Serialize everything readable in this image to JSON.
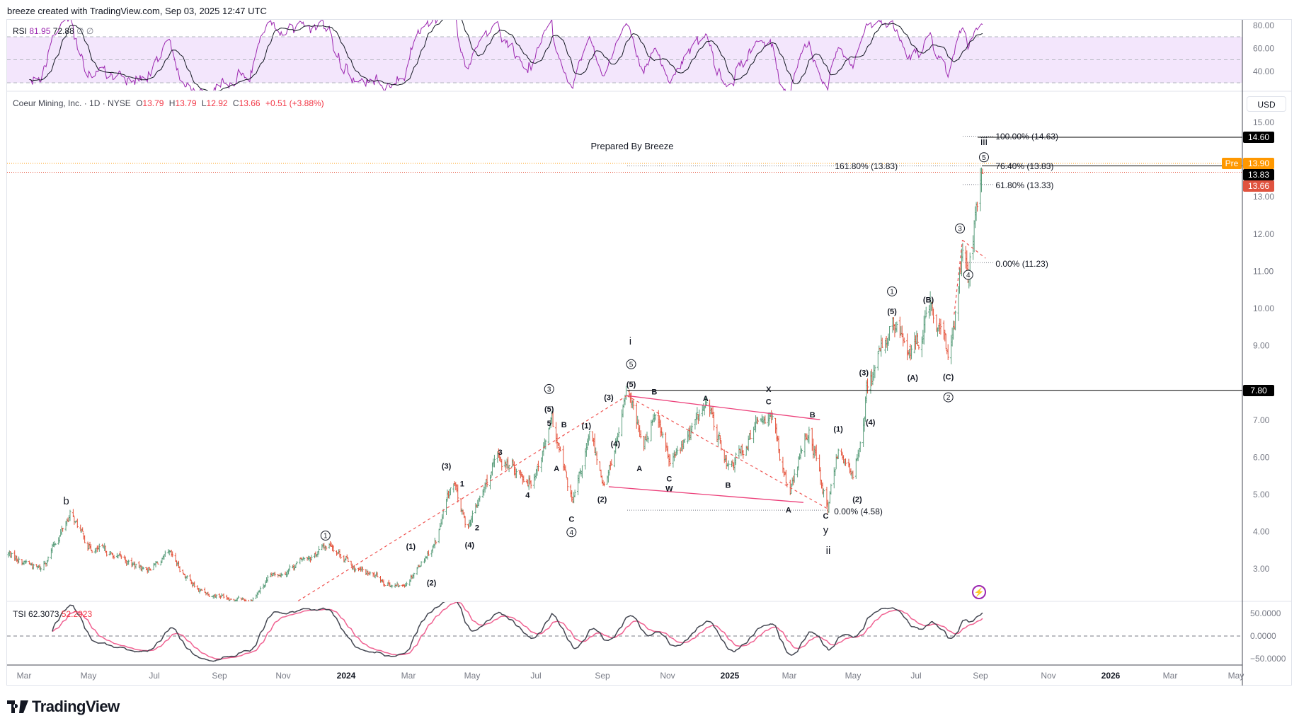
{
  "header": {
    "created_by": "breeze created with TradingView.com, Sep 03, 2025 12:47 UTC"
  },
  "rsi_legend": {
    "label": "RSI",
    "value": "81.95",
    "ma_value": "72.88",
    "extra1": "∅",
    "extra2": "∅"
  },
  "main_legend": {
    "symbol": "Coeur Mining, Inc. · 1D · NYSE",
    "o_label": "O",
    "o": "13.79",
    "h_label": "H",
    "h": "13.79",
    "l_label": "L",
    "l": "12.92",
    "c_label": "C",
    "c": "13.66",
    "change": "+0.51 (+3.88%)"
  },
  "tsi_legend": {
    "label": "TSI",
    "value": "62.3073",
    "signal": "52.2923"
  },
  "currency": "USD",
  "watermark_note": "Prepared By Breeze",
  "colors": {
    "up": "#5b9e7c",
    "down": "#e5533b",
    "rsi": "#9c27b0",
    "rsi_ma": "#131722",
    "tsi": "#434651",
    "tsi_signal": "#f06292",
    "pre": "#ff9800",
    "last": "#e0533f",
    "trend": "#ef5350",
    "channel": "#ec407a"
  },
  "icons": {
    "logo": "tradingview-logo",
    "lightning": "lightning-icon"
  },
  "logo_text": "TradingView",
  "chart_data": {
    "type": "ohlc",
    "title": "Coeur Mining, Inc. · 1D · NYSE",
    "price_axis": {
      "ticks": [
        "15.00",
        "13.00",
        "12.00",
        "11.00",
        "10.00",
        "9.00",
        "7.00",
        "6.00",
        "5.00",
        "4.00",
        "3.00"
      ],
      "range": [
        2.18,
        15.9
      ]
    },
    "price_badges": [
      {
        "value": "14.60",
        "color": "#000000"
      },
      {
        "value": "13.90",
        "color": "#ff9800",
        "tag": "Pre"
      },
      {
        "value": "13.83",
        "color": "#000000"
      },
      {
        "value": "13.66",
        "color": "#e0533f"
      },
      {
        "value": "7.80",
        "color": "#000000"
      }
    ],
    "time_axis": [
      "Mar",
      "May",
      "Jul",
      "Sep",
      "Nov",
      "2024",
      "Mar",
      "May",
      "Jul",
      "Sep",
      "Nov",
      "2025",
      "Mar",
      "May",
      "Jul",
      "Sep",
      "Nov",
      "2026",
      "Mar",
      "May"
    ],
    "price_path": [
      [
        "2023-02-14",
        3.4
      ],
      [
        "2023-03-17",
        2.98
      ],
      [
        "2023-04-14",
        4.49
      ],
      [
        "2023-05-01",
        3.64
      ],
      [
        "2023-06-24",
        2.98
      ],
      [
        "2023-07-18",
        3.31
      ],
      [
        "2023-08-15",
        2.42
      ],
      [
        "2023-10-03",
        2.15
      ],
      [
        "2023-10-23",
        2.75
      ],
      [
        "2023-12-20",
        3.69
      ],
      [
        "2024-01-13",
        2.98
      ],
      [
        "2024-02-25",
        2.49
      ],
      [
        "2024-03-29",
        3.75
      ],
      [
        "2024-04-14",
        5.31
      ],
      [
        "2024-04-27",
        4.09
      ],
      [
        "2024-05-28",
        5.97
      ],
      [
        "2024-06-28",
        5.42
      ],
      [
        "2024-07-18",
        6.86
      ],
      [
        "2024-08-07",
        4.71
      ],
      [
        "2024-08-24",
        6.53
      ],
      [
        "2024-09-07",
        5.2
      ],
      [
        "2024-09-29",
        7.68
      ],
      [
        "2024-10-13",
        6.19
      ],
      [
        "2024-10-25",
        7.41
      ],
      [
        "2024-11-08",
        5.75
      ],
      [
        "2024-12-13",
        7.41
      ],
      [
        "2025-01-04",
        5.64
      ],
      [
        "2025-02-11",
        7.37
      ],
      [
        "2025-03-02",
        4.97
      ],
      [
        "2025-03-21",
        6.75
      ],
      [
        "2025-04-08",
        4.64
      ],
      [
        "2025-04-19",
        6.41
      ],
      [
        "2025-05-03",
        5.31
      ],
      [
        "2025-05-15",
        7.86
      ],
      [
        "2025-06-08",
        9.52
      ],
      [
        "2025-06-28",
        8.74
      ],
      [
        "2025-07-15",
        9.85
      ],
      [
        "2025-08-02",
        8.63
      ],
      [
        "2025-08-16",
        11.9
      ],
      [
        "2025-08-20",
        11.18
      ],
      [
        "2025-09-03",
        13.73
      ]
    ],
    "horizontal_levels": [
      7.8,
      14.6,
      13.83,
      13.9,
      13.66
    ],
    "fib_labels": [
      "100.00% (14.63)",
      "76.40% (13.83)",
      "61.80% (13.33)",
      "0.00% (11.23)",
      "161.80% (13.83)",
      "0.00% (4.58)"
    ],
    "wave_labels": [
      {
        "t": "b"
      },
      {
        "t": "1",
        "c": true
      },
      {
        "t": "(1)"
      },
      {
        "t": "(2)"
      },
      {
        "t": "(3)"
      },
      {
        "t": "1"
      },
      {
        "t": "2"
      },
      {
        "t": "(4)"
      },
      {
        "t": "3"
      },
      {
        "t": "4"
      },
      {
        "t": "(5)"
      },
      {
        "t": "3",
        "c": true
      },
      {
        "t": "5"
      },
      {
        "t": "B"
      },
      {
        "t": "A"
      },
      {
        "t": "C"
      },
      {
        "t": "4",
        "c": true
      },
      {
        "t": "(1)"
      },
      {
        "t": "(4)"
      },
      {
        "t": "(2)"
      },
      {
        "t": "(3)"
      },
      {
        "t": "(5)"
      },
      {
        "t": "5",
        "c": true
      },
      {
        "t": "i"
      },
      {
        "t": "B"
      },
      {
        "t": "A"
      },
      {
        "t": "C"
      },
      {
        "t": "W"
      },
      {
        "t": "A"
      },
      {
        "t": "B"
      },
      {
        "t": "X"
      },
      {
        "t": "C"
      },
      {
        "t": "B"
      },
      {
        "t": "A"
      },
      {
        "t": "C"
      },
      {
        "t": "y"
      },
      {
        "t": "ii"
      },
      {
        "t": "(1)"
      },
      {
        "t": "(2)"
      },
      {
        "t": "(3)"
      },
      {
        "t": "(4)"
      },
      {
        "t": "(5)"
      },
      {
        "t": "1",
        "c": true
      },
      {
        "t": "(B)"
      },
      {
        "t": "(A)"
      },
      {
        "t": "(C)"
      },
      {
        "t": "2",
        "c": true
      },
      {
        "t": "3",
        "c": true
      },
      {
        "t": "4",
        "c": true
      },
      {
        "t": "5",
        "c": true
      },
      {
        "t": "iii"
      }
    ],
    "rsi": {
      "upper": 70,
      "middle": 50,
      "lower": 30,
      "ticks": [
        "80.00",
        "60.00",
        "40.00"
      ]
    },
    "tsi": {
      "ticks": [
        "50.0000",
        "0.0000",
        "−50.0000"
      ],
      "zero_line": 0
    }
  }
}
